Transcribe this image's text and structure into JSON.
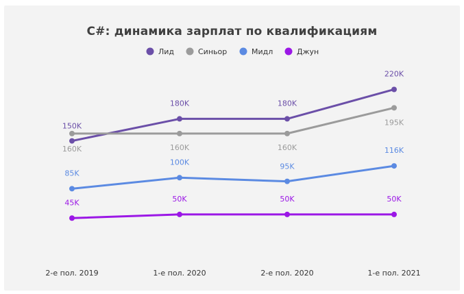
{
  "chart_data": {
    "type": "line",
    "title": "C#: динамика зарплат по квалификациям",
    "categories": [
      "2-е пол. 2019",
      "1-е пол. 2020",
      "2-е пол. 2020",
      "1-е пол. 2021"
    ],
    "series": [
      {
        "name": "Лид",
        "color": "#6b4fa8",
        "values": [
          150,
          180,
          180,
          220
        ],
        "labels": [
          "150K",
          "180K",
          "180K",
          "220K"
        ]
      },
      {
        "name": "Синьор",
        "color": "#9b9b9b",
        "values": [
          160,
          160,
          160,
          195
        ],
        "labels": [
          "160K",
          "160K",
          "160K",
          "195K"
        ]
      },
      {
        "name": "Мидл",
        "color": "#5b8ae2",
        "values": [
          85,
          100,
          95,
          116
        ],
        "labels": [
          "85K",
          "100K",
          "95K",
          "116K"
        ]
      },
      {
        "name": "Джун",
        "color": "#9b17e6",
        "values": [
          45,
          50,
          50,
          50
        ],
        "labels": [
          "45K",
          "50K",
          "50K",
          "50K"
        ]
      }
    ],
    "legend_position": "top-center",
    "grid": false
  }
}
